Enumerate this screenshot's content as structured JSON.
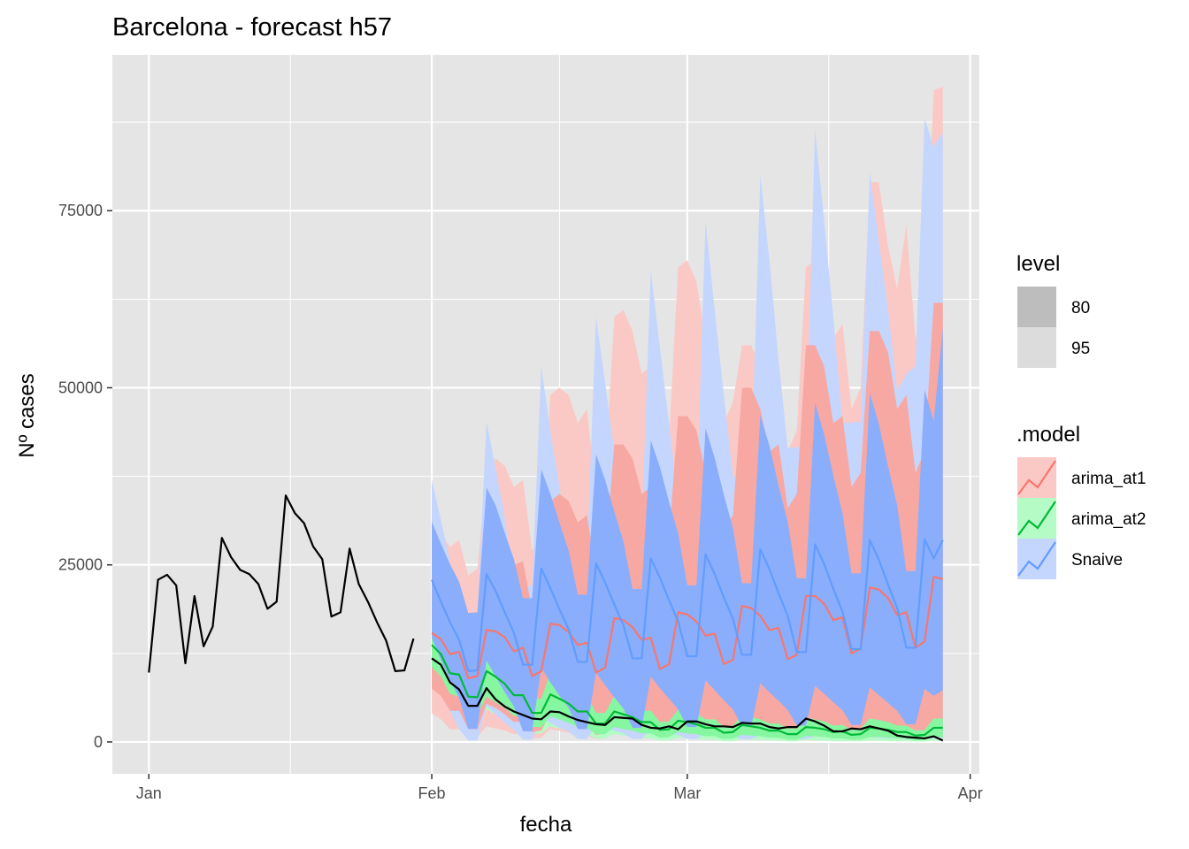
{
  "chart_data": {
    "type": "line",
    "title": "Barcelona - forecast h57",
    "xlabel": "fecha",
    "ylabel": "Nº cases",
    "x_ticks": [
      {
        "date": "2021-01-01",
        "label": "Jan"
      },
      {
        "date": "2021-02-01",
        "label": "Feb"
      },
      {
        "date": "2021-03-01",
        "label": "Mar"
      },
      {
        "date": "2021-04-01",
        "label": "Apr"
      }
    ],
    "y_ticks": [
      0,
      25000,
      50000,
      75000
    ],
    "xlim": [
      "2020-12-28",
      "2021-04-02"
    ],
    "ylim": [
      -4500,
      97000
    ],
    "grid": true,
    "legend_position": "right",
    "legend": {
      "level": {
        "title": "level",
        "items": [
          {
            "label": "80",
            "color": "#bdbdbd"
          },
          {
            "label": "95",
            "color": "#dcdcdc"
          }
        ]
      },
      "model": {
        "title": ".model",
        "items": [
          {
            "label": "arima_at1",
            "color": "#f8766d"
          },
          {
            "label": "arima_at2",
            "color": "#00ba38"
          },
          {
            "label": "Snaive",
            "color": "#619cff"
          }
        ]
      }
    },
    "colors": {
      "panel": "#e5e5e5",
      "grid": "#ffffff",
      "arima_at1_80": "#f7a8a2",
      "arima_at1_95": "#fbc9c5",
      "arima_at2_80": "#86f7a0",
      "arima_at2_95": "#b5fbc5",
      "Snaive_80": "#8aaefc",
      "Snaive_95": "#c4d6fe",
      "observed": "#000000"
    },
    "history": {
      "start_date": "2021-01-01",
      "values": [
        9800,
        22900,
        23600,
        22100,
        11100,
        20600,
        13500,
        16300,
        28800,
        26100,
        24300,
        23700,
        22300,
        18800,
        19800,
        34800,
        32300,
        30900,
        27600,
        25800,
        17700,
        18300,
        27300,
        22300,
        19800,
        16900,
        14300,
        10000,
        10100,
        14600
      ]
    },
    "actual_test": {
      "start_date": "2021-02-01",
      "values": [
        11800,
        10900,
        8400,
        7400,
        5100,
        5100,
        7600,
        6000,
        5000,
        4300,
        3800,
        3300,
        3200,
        4300,
        4200,
        3600,
        3100,
        2800,
        2500,
        2400,
        3500,
        3400,
        3300,
        2400,
        2000,
        1900,
        2200,
        1800,
        2900,
        2900,
        2500,
        2200,
        2200,
        2100,
        2700,
        2600,
        2600,
        2100,
        1900,
        2100,
        2100,
        3300,
        2900,
        2300,
        1500,
        1500,
        1900,
        1800,
        2200,
        1900,
        1600,
        900,
        700,
        600,
        500,
        800,
        200
      ]
    },
    "forecast": {
      "start_date": "2021-02-01",
      "horizon": 57,
      "models": {
        "arima_at1": {
          "mean": [
            15400,
            14500,
            12400,
            12700,
            9000,
            9300,
            15800,
            15600,
            14800,
            12800,
            13300,
            9300,
            10000,
            16700,
            16500,
            15500,
            13700,
            14000,
            9800,
            10500,
            17500,
            17200,
            16200,
            14400,
            14700,
            10300,
            11000,
            18300,
            18000,
            17000,
            15000,
            15300,
            11000,
            11600,
            19200,
            18900,
            17800,
            15800,
            16100,
            11700,
            12300,
            20600,
            20600,
            19500,
            17200,
            17600,
            12500,
            13200,
            21800,
            21500,
            20300,
            17900,
            18300,
            13300,
            14200,
            23300,
            23000
          ],
          "lo80": [
            7500,
            6500,
            4400,
            4400,
            1800,
            1800,
            5400,
            4800,
            3900,
            2800,
            2900,
            1400,
            1600,
            4100,
            3600,
            3000,
            2200,
            2200,
            1000,
            1200,
            3500,
            3000,
            2600,
            1900,
            1900,
            900,
            1000,
            2900,
            2600,
            2200,
            1600,
            1600,
            700,
            900,
            2500,
            2300,
            2000,
            1400,
            1500,
            700,
            800,
            2400,
            2100,
            1800,
            1300,
            1300,
            600,
            700,
            2100,
            1900,
            1600,
            1100,
            1200,
            500,
            600,
            2000,
            1800
          ],
          "hi80": [
            23300,
            22800,
            21000,
            21500,
            17500,
            18000,
            28000,
            28500,
            27800,
            25000,
            25500,
            18500,
            20000,
            34000,
            35000,
            34000,
            31000,
            32000,
            24000,
            26000,
            42000,
            42000,
            40000,
            35000,
            36000,
            27000,
            29000,
            46000,
            46000,
            44000,
            38000,
            39000,
            30000,
            32000,
            50000,
            50000,
            47000,
            41000,
            42000,
            33000,
            35000,
            56000,
            56000,
            53000,
            45000,
            46000,
            36000,
            38000,
            58000,
            58000,
            55000,
            47000,
            49000,
            38000,
            41000,
            62000,
            62000
          ],
          "lo95": [
            4000,
            3200,
            1800,
            1800,
            700,
            700,
            2200,
            1900,
            1600,
            1100,
            1100,
            500,
            600,
            1800,
            1600,
            1300,
            900,
            900,
            400,
            500,
            1500,
            1300,
            1100,
            800,
            800,
            400,
            400,
            1200,
            1100,
            900,
            700,
            700,
            300,
            400,
            1100,
            1000,
            900,
            600,
            600,
            300,
            300,
            1000,
            900,
            800,
            500,
            500,
            300,
            300,
            900,
            800,
            700,
            500,
            500,
            200,
            300,
            800,
            700
          ],
          "hi95": [
            30500,
            29500,
            27500,
            28500,
            23500,
            24500,
            38000,
            40000,
            39000,
            36000,
            37000,
            27000,
            29000,
            49000,
            50000,
            49000,
            45000,
            47000,
            35000,
            38000,
            60000,
            61000,
            58000,
            52000,
            53000,
            40000,
            43000,
            67000,
            68000,
            65000,
            57000,
            58000,
            45000,
            48000,
            56000,
            56000,
            53000,
            50000,
            52000,
            41000,
            44000,
            67000,
            68000,
            64000,
            57000,
            59000,
            47000,
            50000,
            79000,
            79000,
            70000,
            64000,
            73000,
            57000,
            60000,
            92000,
            92500
          ]
        },
        "arima_at2": {
          "mean": [
            13700,
            12400,
            9700,
            9500,
            6400,
            6300,
            10000,
            9200,
            8200,
            6600,
            6600,
            4100,
            4100,
            6700,
            6100,
            5400,
            4300,
            4300,
            2600,
            2600,
            4300,
            3900,
            3500,
            2800,
            2800,
            1700,
            1800,
            3000,
            2800,
            2500,
            2000,
            2000,
            1300,
            1400,
            2400,
            2200,
            2000,
            1600,
            1600,
            1100,
            1100,
            2100,
            2000,
            1800,
            1400,
            1500,
            1000,
            1100,
            2000,
            1900,
            1700,
            1400,
            1400,
            900,
            1000,
            2000,
            2000
          ],
          "lo80": [
            10600,
            9200,
            6800,
            6400,
            4100,
            3900,
            6400,
            5600,
            4800,
            3700,
            3600,
            2100,
            2100,
            3600,
            3200,
            2700,
            2100,
            2000,
            1100,
            1100,
            2100,
            1800,
            1600,
            1200,
            1200,
            600,
            700,
            1400,
            1200,
            1100,
            800,
            800,
            400,
            500,
            1000,
            900,
            800,
            600,
            600,
            300,
            300,
            800,
            800,
            700,
            500,
            500,
            300,
            300,
            700,
            700,
            600,
            500,
            500,
            200,
            300,
            700,
            700
          ],
          "hi80": [
            16800,
            15600,
            12600,
            12600,
            8700,
            8700,
            13600,
            12800,
            11600,
            9500,
            9600,
            6100,
            6100,
            9800,
            9000,
            8100,
            6500,
            6600,
            4100,
            4100,
            6500,
            6000,
            5400,
            4400,
            4400,
            2800,
            2900,
            4600,
            4400,
            4000,
            3200,
            3200,
            2200,
            2300,
            3800,
            3500,
            3200,
            2600,
            2600,
            1900,
            1900,
            3400,
            3200,
            2900,
            2300,
            2400,
            1700,
            1900,
            3300,
            3100,
            2800,
            2300,
            2300,
            1600,
            1700,
            3300,
            3300
          ],
          "lo95": [
            9000,
            7500,
            5300,
            4900,
            2900,
            2800,
            4600,
            3900,
            3200,
            2400,
            2300,
            1200,
            1200,
            2200,
            1900,
            1600,
            1100,
            1100,
            500,
            500,
            1100,
            900,
            800,
            600,
            500,
            200,
            200,
            600,
            500,
            400,
            300,
            300,
            100,
            100,
            400,
            300,
            300,
            200,
            200,
            100,
            100,
            300,
            200,
            200,
            100,
            100,
            100,
            100,
            200,
            200,
            100,
            100,
            100,
            50,
            50,
            200,
            200
          ],
          "hi95": [
            18400,
            17200,
            14100,
            14200,
            9900,
            9900,
            15500,
            14600,
            13300,
            10900,
            11100,
            7100,
            7200,
            11600,
            10700,
            9600,
            7800,
            7900,
            4900,
            4900,
            7800,
            7200,
            6500,
            5300,
            5300,
            3400,
            3600,
            5700,
            5400,
            4900,
            4000,
            4000,
            2700,
            2800,
            4800,
            4400,
            4000,
            3300,
            3300,
            2400,
            2400,
            4300,
            4100,
            3700,
            3000,
            3100,
            2200,
            2400,
            4200,
            4000,
            3600,
            3000,
            3000,
            2100,
            2200,
            4300,
            4300
          ]
        },
        "Snaive": {
          "mean": [
            22900,
            19800,
            16900,
            14400,
            10000,
            10100,
            23700,
            21300,
            18300,
            15400,
            10900,
            10900,
            24500,
            21700,
            18700,
            15900,
            11300,
            11300,
            25200,
            22500,
            19400,
            16500,
            11800,
            11800,
            25900,
            23200,
            20000,
            17000,
            12100,
            12100,
            26500,
            23700,
            20400,
            17400,
            12300,
            12300,
            27200,
            24400,
            21000,
            17800,
            12700,
            12700,
            27900,
            25100,
            21600,
            18400,
            13100,
            13100,
            28500,
            25700,
            22200,
            18900,
            13300,
            13300,
            28600,
            25900,
            28500
          ],
          "lo80": [
            14700,
            11600,
            8700,
            6200,
            1800,
            1900,
            11500,
            9200,
            7000,
            5000,
            1500,
            1500,
            10500,
            8400,
            6500,
            4800,
            1800,
            1800,
            9800,
            8000,
            6300,
            4700,
            2000,
            2000,
            9200,
            7600,
            6100,
            4600,
            2100,
            2100,
            8700,
            7300,
            5900,
            4600,
            2200,
            2200,
            8300,
            7000,
            5800,
            4500,
            2300,
            2300,
            7900,
            6800,
            5600,
            4500,
            2400,
            2400,
            7700,
            6600,
            5500,
            4400,
            2500,
            2500,
            7500,
            6500,
            7300
          ],
          "hi80": [
            31100,
            28000,
            25100,
            22600,
            18200,
            18300,
            35900,
            33400,
            29500,
            25800,
            20300,
            20300,
            38500,
            35000,
            30900,
            27000,
            20800,
            20800,
            40600,
            37000,
            32500,
            28300,
            21600,
            21600,
            42600,
            38800,
            33900,
            29400,
            22100,
            22100,
            44300,
            40100,
            34900,
            30200,
            22400,
            22400,
            46100,
            41800,
            36200,
            31100,
            23100,
            23100,
            47900,
            43400,
            37600,
            32300,
            23800,
            23800,
            49300,
            44800,
            38900,
            33400,
            24100,
            24100,
            49700,
            45300,
            58500
          ],
          "lo95": [
            10300,
            7200,
            4400,
            1800,
            200,
            200,
            5100,
            3900,
            2700,
            1700,
            300,
            300,
            3400,
            2700,
            2000,
            1500,
            400,
            400,
            2400,
            2000,
            1600,
            1200,
            400,
            400,
            1700,
            1500,
            1200,
            1000,
            400,
            400,
            1300,
            1100,
            900,
            800,
            400,
            400,
            1000,
            900,
            800,
            700,
            400,
            400,
            800,
            700,
            600,
            600,
            400,
            400,
            700,
            600,
            500,
            500,
            400,
            400,
            600,
            500,
            600
          ],
          "hi95": [
            37000,
            31400,
            25400,
            17600,
            17800,
            17900,
            45200,
            38600,
            31700,
            22000,
            22000,
            22100,
            53000,
            43900,
            36000,
            26000,
            26000,
            26100,
            60000,
            50700,
            41000,
            29800,
            29900,
            30000,
            66500,
            55700,
            45000,
            33500,
            33600,
            33700,
            73500,
            61000,
            49000,
            37500,
            37600,
            37700,
            80000,
            68000,
            54000,
            41500,
            41600,
            41700,
            86500,
            73500,
            60000,
            45000,
            45100,
            45200,
            80500,
            70500,
            61000,
            49500,
            52000,
            53000,
            88000,
            84000,
            86000
          ]
        }
      }
    }
  }
}
